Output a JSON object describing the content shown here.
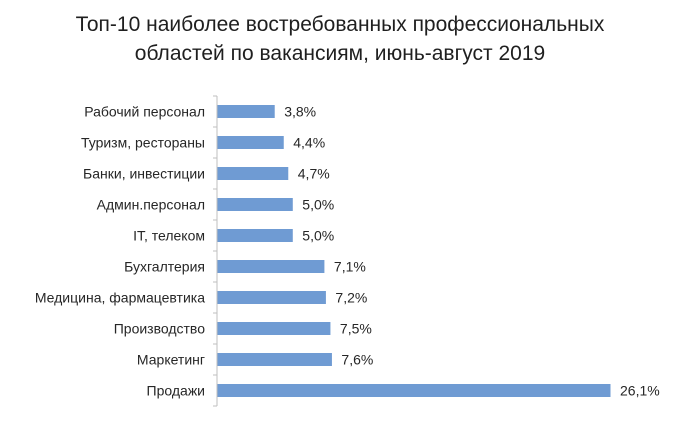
{
  "chart_data": {
    "type": "bar",
    "orientation": "horizontal",
    "title_lines": [
      "Топ-10 наиболее востребованных профессиональных",
      "областей по вакансиям, июнь-август 2019"
    ],
    "categories": [
      "Рабочий персонал",
      "Туризм, рестораны",
      "Банки, инвестиции",
      "Админ.персонал",
      "IT, телеком",
      "Бухгалтерия",
      "Медицина, фармацевтика",
      "Производство",
      "Маркетинг",
      "Продажи"
    ],
    "values": [
      3.8,
      4.4,
      4.7,
      5.0,
      5.0,
      7.1,
      7.2,
      7.5,
      7.6,
      26.1
    ],
    "value_labels": [
      "3,8%",
      "4,4%",
      "4,7%",
      "5,0%",
      "5,0%",
      "7,1%",
      "7,2%",
      "7,5%",
      "7,6%",
      "26,1%"
    ],
    "bar_color": "#6f9bd3",
    "axis_color": "#bfbfbf",
    "xlim": [
      0,
      30
    ],
    "grid": false,
    "legend": "none"
  }
}
